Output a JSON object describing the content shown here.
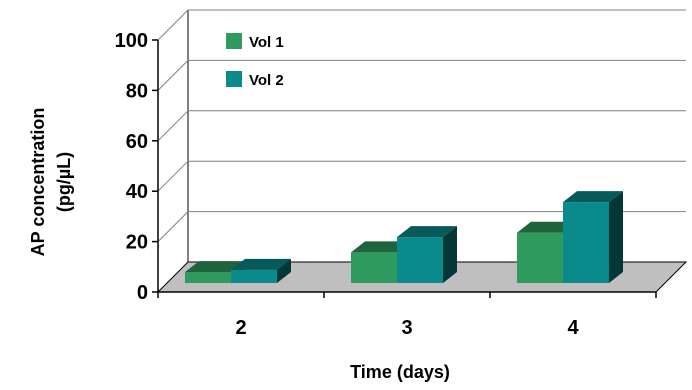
{
  "chart_data": {
    "type": "bar",
    "title": "",
    "xlabel": "Time (days)",
    "ylabel_lines": [
      "AP concentration",
      "(pg/µL)"
    ],
    "categories": [
      "2",
      "3",
      "4"
    ],
    "series": [
      {
        "name": "Vol 1",
        "values": [
          5,
          14,
          23
        ],
        "color": "#2e9a5e"
      },
      {
        "name": "Vol 2",
        "values": [
          6,
          21,
          37
        ],
        "color": "#0a8a8a"
      }
    ],
    "ylim": [
      0,
      100
    ],
    "yticks": [
      "0",
      "20",
      "40",
      "60",
      "80",
      "100"
    ],
    "grid": true,
    "legend": "top-left",
    "floor_color": "#bfbfbf"
  }
}
